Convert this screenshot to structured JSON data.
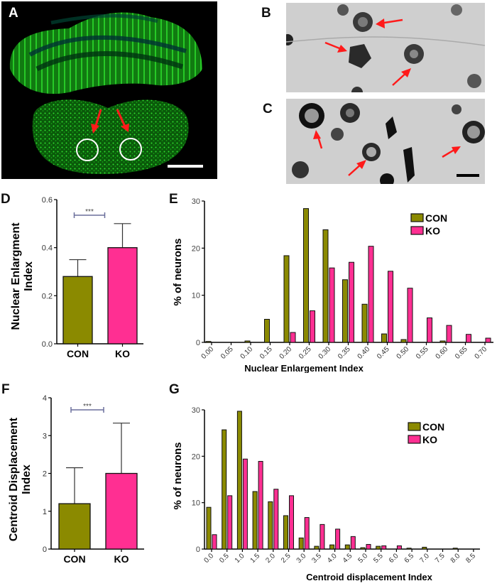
{
  "figure": {
    "panels": {
      "A": {
        "letter": "A",
        "description": "fluorescence micrograph of cerebellum and brainstem section",
        "annotations": [
          "red-arrow",
          "red-arrow",
          "white-circle",
          "white-circle",
          "scale-bar"
        ]
      },
      "B": {
        "letter": "B",
        "description": "grayscale micrograph of neurons with red arrows",
        "arrows": 3
      },
      "C": {
        "letter": "C",
        "description": "grayscale micrograph of enlarged neurons with red arrows and scale bar",
        "arrows": 3
      }
    },
    "colors": {
      "con": "#8b8a00",
      "ko": "#ff2f92",
      "sig_bracket": "#6a6f9c",
      "fluor_green": "#1ccf1c",
      "arrow_red": "#ff1a1a"
    }
  },
  "chart_data": [
    {
      "panel": "D",
      "type": "bar",
      "title": "",
      "xlabel": "",
      "ylabel": "Nuclear Enlargment Index",
      "ylabel_lines": [
        "Nuclear Enlargment",
        "Index"
      ],
      "categories": [
        "CON",
        "KO"
      ],
      "values": [
        0.28,
        0.4
      ],
      "error": [
        0.07,
        0.1
      ],
      "ylim": [
        0,
        0.6
      ],
      "yticks": [
        "0.0",
        "0.2",
        "0.4",
        "0.6"
      ],
      "significance": "***",
      "grid": false
    },
    {
      "panel": "E",
      "type": "bar",
      "title": "",
      "xlabel": "Nuclear  Enlargement Index",
      "ylabel": "% of neurons",
      "categories": [
        "0.00",
        "0.05",
        "0.10",
        "0.15",
        "0.20",
        "0.25",
        "0.30",
        "0.35",
        "0.40",
        "0.45",
        "0.50",
        "0.55",
        "0.60",
        "0.65",
        "0.70"
      ],
      "series": [
        {
          "name": "CON",
          "values": [
            0.2,
            0,
            0.3,
            4.9,
            18.4,
            28.4,
            23.9,
            13.3,
            8.1,
            1.8,
            0.6,
            0,
            0.3,
            0,
            0
          ]
        },
        {
          "name": "KO",
          "values": [
            0,
            0,
            0,
            0,
            2.1,
            6.7,
            15.8,
            17.0,
            20.4,
            15.1,
            11.5,
            5.2,
            3.6,
            1.7,
            0.9
          ]
        }
      ],
      "ylim": [
        0,
        30
      ],
      "yticks": [
        "0",
        "10",
        "20",
        "30"
      ],
      "legend": [
        "CON",
        "KO"
      ],
      "legend_position": "top-right",
      "grid": false
    },
    {
      "panel": "F",
      "type": "bar",
      "title": "",
      "xlabel": "",
      "ylabel": "Centroid Displacement Index",
      "ylabel_lines": [
        "Centroid Displacement",
        "Index"
      ],
      "categories": [
        "CON",
        "KO"
      ],
      "values": [
        1.2,
        2.0
      ],
      "error": [
        0.95,
        1.33
      ],
      "ylim": [
        0,
        4
      ],
      "yticks": [
        "0",
        "1",
        "2",
        "3",
        "4"
      ],
      "significance": "***",
      "grid": false
    },
    {
      "panel": "G",
      "type": "bar",
      "title": "",
      "xlabel": "Centroid displacement Index",
      "ylabel": "% of neurons",
      "categories": [
        "0.0",
        "0.5",
        "1.0",
        "1.5",
        "2.0",
        "2.5",
        "3.0",
        "3.5",
        "4.0",
        "4.5",
        "5.0",
        "5.5",
        "6.0",
        "6.5",
        "7.0",
        "7.5",
        "8.0",
        "8.5"
      ],
      "series": [
        {
          "name": "CON",
          "values": [
            9.0,
            25.7,
            29.7,
            12.4,
            10.2,
            7.2,
            2.4,
            0.6,
            0.9,
            0.9,
            0.3,
            0.6,
            0,
            0.2,
            0.4,
            0,
            0.2,
            0
          ]
        },
        {
          "name": "KO",
          "values": [
            3.1,
            11.5,
            19.4,
            18.9,
            12.9,
            11.5,
            6.8,
            5.3,
            4.3,
            2.7,
            1.0,
            0.7,
            0.7,
            0,
            0,
            0,
            0,
            0
          ]
        }
      ],
      "ylim": [
        0,
        30
      ],
      "yticks": [
        "0",
        "10",
        "20",
        "30"
      ],
      "legend": [
        "CON",
        "KO"
      ],
      "legend_position": "top-right",
      "grid": false
    }
  ]
}
